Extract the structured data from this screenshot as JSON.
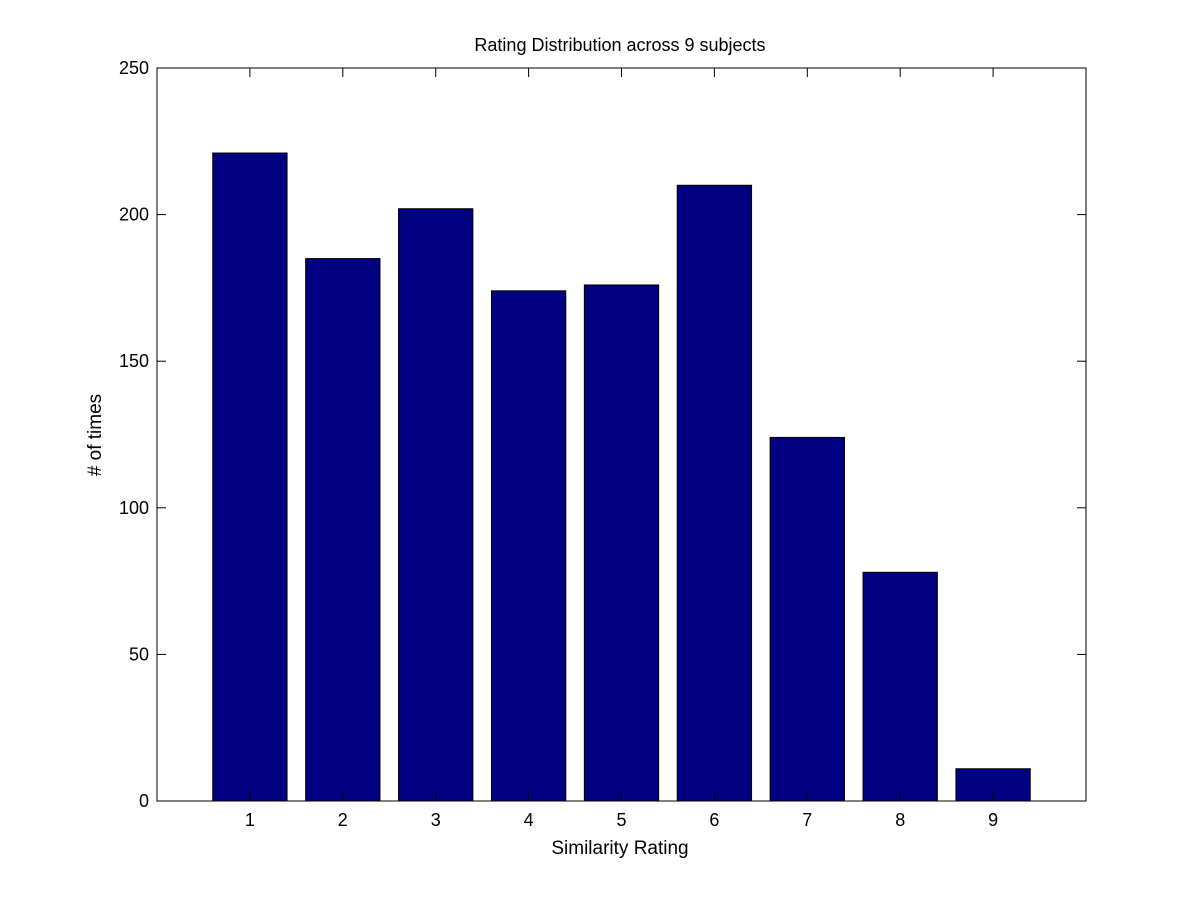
{
  "chart_data": {
    "type": "bar",
    "title": "Rating Distribution across 9 subjects",
    "xlabel": "Similarity Rating",
    "ylabel": "# of times",
    "categories": [
      "1",
      "2",
      "3",
      "4",
      "5",
      "6",
      "7",
      "8",
      "9"
    ],
    "values": [
      221,
      185,
      202,
      174,
      176,
      210,
      124,
      78,
      11
    ],
    "ylim": [
      0,
      250
    ],
    "yticks": [
      0,
      50,
      100,
      150,
      200,
      250
    ],
    "xlim": [
      0,
      10
    ],
    "grid": false,
    "bar_color": "#000080",
    "edge_color": "#000000"
  }
}
